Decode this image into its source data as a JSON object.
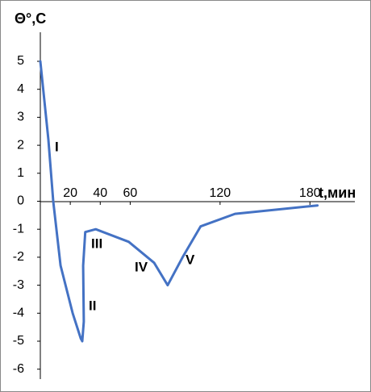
{
  "chart_data": {
    "type": "line",
    "y_label": "Θ°,C",
    "x_label": "t,мин",
    "x": [
      0,
      5.4,
      8.6,
      13.5,
      21.6,
      27,
      28,
      29,
      28.6,
      30,
      37,
      59,
      76,
      85,
      95,
      107,
      130,
      185
    ],
    "series": [
      {
        "color": "#4472c4",
        "values": [
          5,
          2.2,
          0,
          -2.3,
          -4.0,
          -4.9,
          -5,
          -4.3,
          -2.3,
          -1.1,
          -1,
          -1.45,
          -2.2,
          -3,
          -2,
          -0.9,
          -0.45,
          -0.15
        ]
      }
    ],
    "xlim": [
      0,
      210
    ],
    "ylim": [
      -6,
      5
    ],
    "xticks": [
      20,
      40,
      60,
      120,
      180
    ],
    "yticks": [
      -6,
      -5,
      -4,
      -3,
      -2,
      -1,
      0,
      1,
      2,
      3,
      4,
      5
    ],
    "annotations": [
      "I",
      "II",
      "III",
      "IV",
      "V"
    ]
  }
}
